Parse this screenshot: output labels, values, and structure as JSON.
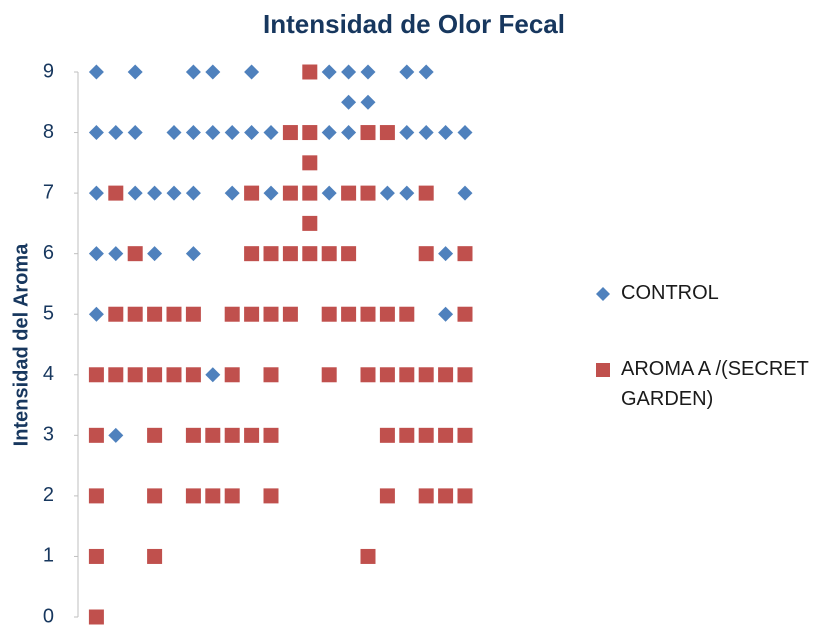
{
  "chart_data": {
    "type": "scatter",
    "title": "Intensidad de Olor Fecal",
    "ylabel": "Intensidad del Aroma",
    "xlim": [
      0,
      20
    ],
    "ylim": [
      0,
      9
    ],
    "yticks": [
      0,
      1,
      2,
      3,
      4,
      5,
      6,
      7,
      8,
      9
    ],
    "legend": "right",
    "series": [
      {
        "name": "CONTROL",
        "color": "#4f81bd",
        "marker": "diamond",
        "x": [
          1,
          3,
          6,
          7,
          9,
          13,
          14,
          15,
          17,
          18,
          14,
          15,
          1,
          2,
          3,
          5,
          6,
          7,
          8,
          9,
          10,
          13,
          14,
          17,
          18,
          19,
          20,
          1,
          3,
          4,
          5,
          6,
          8,
          10,
          13,
          16,
          17,
          20,
          1,
          2,
          4,
          6,
          19,
          1,
          19,
          7,
          2
        ],
        "y": [
          9,
          9,
          9,
          9,
          9,
          9,
          9,
          9,
          9,
          9,
          8.5,
          8.5,
          8,
          8,
          8,
          8,
          8,
          8,
          8,
          8,
          8,
          8,
          8,
          8,
          8,
          8,
          8,
          7,
          7,
          7,
          7,
          7,
          7,
          7,
          7,
          7,
          7,
          7,
          6,
          6,
          6,
          6,
          6,
          5,
          5,
          4,
          3
        ]
      },
      {
        "name": "AROMA A /(SECRET GARDEN)",
        "color": "#c0504d",
        "marker": "square",
        "x": [
          12,
          11,
          12,
          15,
          16,
          12,
          2,
          9,
          11,
          12,
          14,
          15,
          18,
          12,
          3,
          9,
          10,
          11,
          12,
          13,
          14,
          18,
          20,
          2,
          3,
          4,
          5,
          6,
          8,
          9,
          10,
          11,
          13,
          14,
          15,
          16,
          17,
          20,
          1,
          2,
          3,
          4,
          5,
          6,
          8,
          10,
          13,
          15,
          16,
          17,
          18,
          19,
          20,
          1,
          4,
          6,
          7,
          8,
          9,
          10,
          16,
          17,
          18,
          19,
          20,
          1,
          4,
          6,
          7,
          8,
          10,
          16,
          18,
          19,
          20,
          1,
          4,
          15,
          1
        ],
        "y": [
          9,
          8,
          8,
          8,
          8,
          7.5,
          7,
          7,
          7,
          7,
          7,
          7,
          7,
          6.5,
          6,
          6,
          6,
          6,
          6,
          6,
          6,
          6,
          6,
          5,
          5,
          5,
          5,
          5,
          5,
          5,
          5,
          5,
          5,
          5,
          5,
          5,
          5,
          5,
          4,
          4,
          4,
          4,
          4,
          4,
          4,
          4,
          4,
          4,
          4,
          4,
          4,
          4,
          4,
          3,
          3,
          3,
          3,
          3,
          3,
          3,
          3,
          3,
          3,
          3,
          3,
          2,
          2,
          2,
          2,
          2,
          2,
          2,
          2,
          2,
          2,
          1,
          1,
          1,
          0
        ]
      }
    ]
  }
}
